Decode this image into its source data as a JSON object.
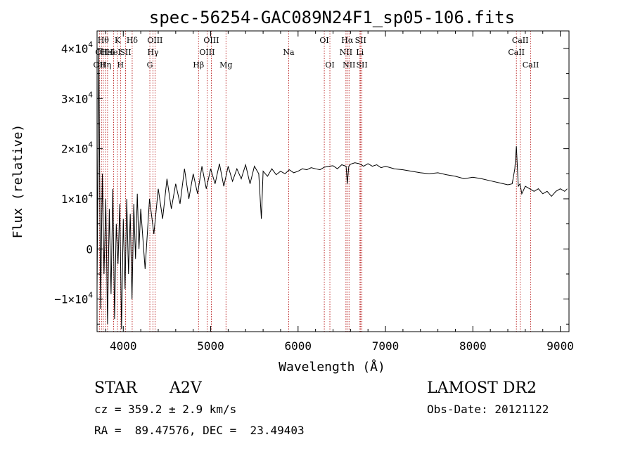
{
  "chart_data": {
    "type": "line",
    "title": "spec-56254-GAC089N24F1_sp05-106.fits",
    "xlabel": "Wavelength (Å)",
    "ylabel": "Flux (relative)",
    "xlim": [
      3700,
      9100
    ],
    "ylim": [
      -16500,
      43500
    ],
    "xticks": [
      4000,
      5000,
      6000,
      7000,
      8000,
      9000
    ],
    "xtick_labels": [
      "4000",
      "5000",
      "6000",
      "7000",
      "8000",
      "9000"
    ],
    "yticks": [
      {
        "value": -10000,
        "mantissa": "−1×10",
        "exp": "4"
      },
      {
        "value": 0,
        "mantissa": "0",
        "exp": ""
      },
      {
        "value": 10000,
        "mantissa": "1×10",
        "exp": "4"
      },
      {
        "value": 20000,
        "mantissa": "2×10",
        "exp": "4"
      },
      {
        "value": 30000,
        "mantissa": "3×10",
        "exp": "4"
      },
      {
        "value": 40000,
        "mantissa": "4×10",
        "exp": "4"
      }
    ],
    "series": [
      {
        "name": "flux",
        "x": [
          3700,
          3720,
          3740,
          3760,
          3780,
          3800,
          3820,
          3840,
          3860,
          3880,
          3900,
          3920,
          3940,
          3960,
          3980,
          4000,
          4020,
          4040,
          4060,
          4080,
          4100,
          4120,
          4140,
          4160,
          4180,
          4200,
          4250,
          4300,
          4350,
          4400,
          4450,
          4500,
          4550,
          4600,
          4650,
          4700,
          4750,
          4800,
          4850,
          4900,
          4950,
          5000,
          5050,
          5100,
          5150,
          5200,
          5250,
          5300,
          5350,
          5400,
          5450,
          5500,
          5550,
          5580,
          5600,
          5650,
          5700,
          5750,
          5800,
          5850,
          5900,
          5950,
          6000,
          6050,
          6100,
          6150,
          6200,
          6250,
          6300,
          6350,
          6400,
          6450,
          6500,
          6550,
          6563,
          6580,
          6600,
          6650,
          6700,
          6750,
          6800,
          6850,
          6900,
          6950,
          7000,
          7100,
          7200,
          7300,
          7400,
          7500,
          7600,
          7700,
          7800,
          7900,
          8000,
          8100,
          8200,
          8300,
          8400,
          8450,
          8480,
          8498,
          8520,
          8540,
          8560,
          8600,
          8650,
          8700,
          8750,
          8800,
          8850,
          8900,
          8950,
          9000,
          9050,
          9080
        ],
        "y": [
          -8000,
          40000,
          -12000,
          15000,
          -5000,
          10000,
          -15000,
          8000,
          -9000,
          12000,
          -14000,
          5000,
          -3000,
          9000,
          -16000,
          6000,
          -8000,
          10000,
          -5000,
          7000,
          -10000,
          9000,
          -2000,
          11000,
          0,
          8000,
          -4000,
          10000,
          3000,
          12000,
          6000,
          14000,
          8000,
          13000,
          9000,
          16000,
          10000,
          15000,
          11000,
          16500,
          12000,
          16000,
          13000,
          17000,
          12500,
          16500,
          13500,
          16000,
          14000,
          16800,
          13000,
          16500,
          15000,
          6000,
          15500,
          14500,
          16000,
          14800,
          15500,
          15000,
          15800,
          15200,
          15500,
          16000,
          15800,
          16200,
          16000,
          15800,
          16300,
          16500,
          16600,
          16000,
          16800,
          16500,
          13000,
          16500,
          16900,
          17200,
          17000,
          16500,
          17000,
          16500,
          16800,
          16200,
          16500,
          16000,
          15800,
          15500,
          15200,
          15000,
          15200,
          14800,
          14500,
          14000,
          14300,
          14000,
          13600,
          13200,
          12800,
          13000,
          16000,
          20500,
          12500,
          13000,
          11000,
          12500,
          12000,
          11500,
          12000,
          11000,
          11500,
          10500,
          11500,
          12000,
          11500,
          12000
        ]
      }
    ],
    "line_annotations": [
      {
        "wavelength": 3727,
        "label": "OII",
        "row": 2
      },
      {
        "wavelength": 3750,
        "label": "OII",
        "row": 1
      },
      {
        "wavelength": 3771,
        "label": "Hθ",
        "row": 0
      },
      {
        "wavelength": 3798,
        "label": "Hη",
        "row": 2
      },
      {
        "wavelength": 3820,
        "label": "HeI",
        "row": 1
      },
      {
        "wavelength": 3889,
        "label": "HeI",
        "row": 1
      },
      {
        "wavelength": 3934,
        "label": "K",
        "row": 0
      },
      {
        "wavelength": 3968,
        "label": "H",
        "row": 2
      },
      {
        "wavelength": 4026,
        "label": "SII",
        "row": 1
      },
      {
        "wavelength": 4102,
        "label": "Hδ",
        "row": 0
      },
      {
        "wavelength": 4304,
        "label": "G",
        "row": 2
      },
      {
        "wavelength": 4340,
        "label": "Hγ",
        "row": 1
      },
      {
        "wavelength": 4363,
        "label": "OIII",
        "row": 0
      },
      {
        "wavelength": 4861,
        "label": "Hβ",
        "row": 2
      },
      {
        "wavelength": 4959,
        "label": "OIII",
        "row": 1
      },
      {
        "wavelength": 5007,
        "label": "OIII",
        "row": 0
      },
      {
        "wavelength": 5175,
        "label": "Mg",
        "row": 2
      },
      {
        "wavelength": 5893,
        "label": "Na",
        "row": 1
      },
      {
        "wavelength": 6300,
        "label": "OI",
        "row": 0
      },
      {
        "wavelength": 6364,
        "label": "OI",
        "row": 2
      },
      {
        "wavelength": 6548,
        "label": "NII",
        "row": 1
      },
      {
        "wavelength": 6563,
        "label": "Hα",
        "row": 0
      },
      {
        "wavelength": 6583,
        "label": "NII",
        "row": 2
      },
      {
        "wavelength": 6708,
        "label": "Li",
        "row": 1
      },
      {
        "wavelength": 6716,
        "label": "SII",
        "row": 0
      },
      {
        "wavelength": 6731,
        "label": "SII",
        "row": 2
      },
      {
        "wavelength": 8498,
        "label": "CaII",
        "row": 1
      },
      {
        "wavelength": 8542,
        "label": "CaII",
        "row": 0
      },
      {
        "wavelength": 8662,
        "label": "CaII",
        "row": 2
      }
    ]
  },
  "info": {
    "class": "STAR",
    "subclass": "A2V",
    "survey": "LAMOST DR2",
    "redshift": "cz = 359.2 ± 2.9 km/s",
    "obs_date": "Obs-Date: 20121122",
    "coords": "RA =  89.47576, DEC =  23.49403"
  },
  "colors": {
    "line": "#000000",
    "annotation": "#b00000"
  }
}
